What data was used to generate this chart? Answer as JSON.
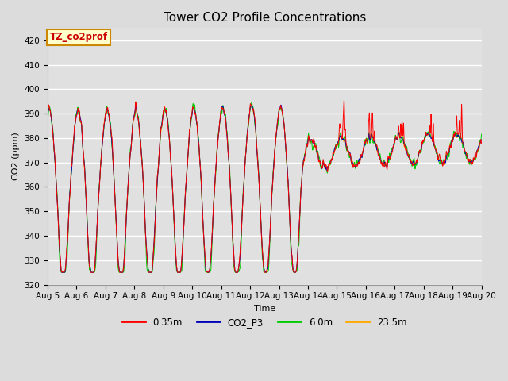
{
  "title": "Tower CO2 Profile Concentrations",
  "xlabel": "Time",
  "ylabel": "CO2 (ppm)",
  "ylim": [
    320,
    425
  ],
  "yticks": [
    320,
    330,
    340,
    350,
    360,
    370,
    380,
    390,
    400,
    410,
    420
  ],
  "series_colors": {
    "0.35m": "#ff0000",
    "CO2_P3": "#0000bb",
    "6.0m": "#00cc00",
    "23.5m": "#ffaa00"
  },
  "legend_label_box": "TZ_co2prof",
  "legend_box_bg": "#ffffcc",
  "legend_box_border": "#cc8800",
  "legend_box_text": "#cc0000",
  "bg_color": "#e0e0e0",
  "axes_bg": "#e0e0e0",
  "grid_color": "#ffffff",
  "title_fontsize": 11,
  "axis_fontsize": 8,
  "tick_fontsize": 7.5,
  "n_days": 15,
  "start_day": 5
}
